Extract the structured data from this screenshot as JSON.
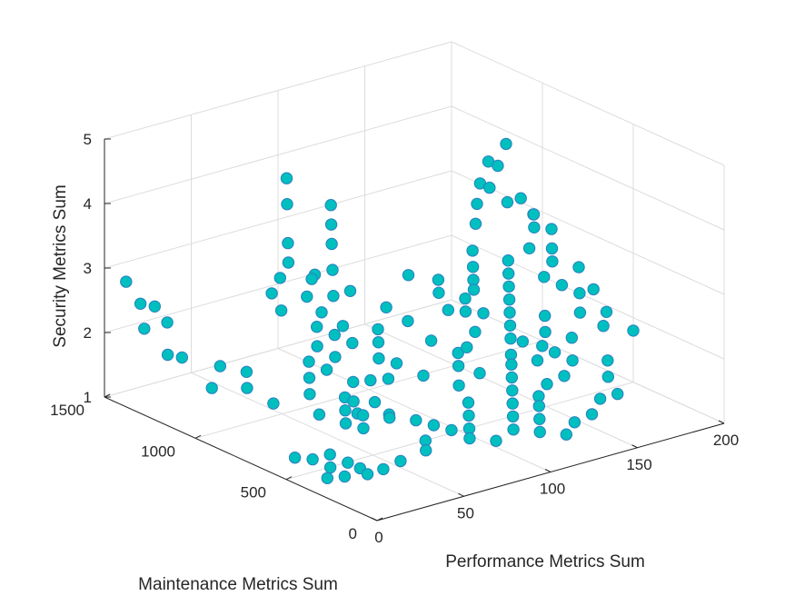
{
  "chart_data": {
    "type": "scatter",
    "title": "",
    "xlabel": "Performance Metrics Sum",
    "ylabel": "Maintenance Metrics Sum",
    "zlabel": "Security Metrics Sum",
    "xlim": [
      0,
      200
    ],
    "ylim": [
      0,
      1500
    ],
    "zlim": [
      1,
      5
    ],
    "x_ticks": [
      "0",
      "50",
      "100",
      "150",
      "200"
    ],
    "y_ticks": [
      "0",
      "500",
      "1000",
      "1500"
    ],
    "z_ticks": [
      "1",
      "2",
      "3",
      "4",
      "5"
    ],
    "grid": true,
    "marker_color": "#00BFBF",
    "marker_edge_color": "#2A7FBF",
    "series": [
      {
        "points": [
          {
            "x": 2,
            "y": 1400,
            "z": 2.9
          },
          {
            "x": 5,
            "y": 1350,
            "z": 2.6
          },
          {
            "x": 8,
            "y": 1300,
            "z": 2.6
          },
          {
            "x": 2,
            "y": 1300,
            "z": 2.3
          },
          {
            "x": 10,
            "y": 1250,
            "z": 2.4
          },
          {
            "x": 5,
            "y": 1200,
            "z": 2.0
          },
          {
            "x": 8,
            "y": 1150,
            "z": 2.0
          },
          {
            "x": 30,
            "y": 1150,
            "z": 1.7
          },
          {
            "x": 20,
            "y": 1100,
            "z": 1.5
          },
          {
            "x": 40,
            "y": 1100,
            "z": 1.6
          },
          {
            "x": 35,
            "y": 1050,
            "z": 1.45
          },
          {
            "x": 45,
            "y": 1000,
            "z": 1.2
          },
          {
            "x": 5,
            "y": 500,
            "z": 1.3
          },
          {
            "x": 10,
            "y": 450,
            "z": 1.3
          },
          {
            "x": 20,
            "y": 450,
            "z": 1.3
          },
          {
            "x": 15,
            "y": 400,
            "z": 1.2
          },
          {
            "x": 25,
            "y": 400,
            "z": 1.2
          },
          {
            "x": 30,
            "y": 380,
            "z": 1.1
          },
          {
            "x": 8,
            "y": 350,
            "z": 1.15
          },
          {
            "x": 18,
            "y": 350,
            "z": 1.1
          },
          {
            "x": 28,
            "y": 320,
            "z": 1.1
          },
          {
            "x": 35,
            "y": 300,
            "z": 1.15
          },
          {
            "x": 45,
            "y": 300,
            "z": 1.2
          },
          {
            "x": 55,
            "y": 700,
            "z": 1.4
          },
          {
            "x": 60,
            "y": 750,
            "z": 1.5
          },
          {
            "x": 62,
            "y": 700,
            "z": 1.3
          },
          {
            "x": 65,
            "y": 750,
            "z": 1.4
          },
          {
            "x": 70,
            "y": 800,
            "z": 1.6
          },
          {
            "x": 72,
            "y": 700,
            "z": 1.4
          },
          {
            "x": 75,
            "y": 650,
            "z": 1.25
          },
          {
            "x": 80,
            "y": 800,
            "z": 1.55
          },
          {
            "x": 85,
            "y": 750,
            "z": 1.6
          },
          {
            "x": 90,
            "y": 850,
            "z": 1.75
          },
          {
            "x": 95,
            "y": 900,
            "z": 1.9
          },
          {
            "x": 100,
            "y": 950,
            "z": 2.0
          },
          {
            "x": 95,
            "y": 800,
            "z": 1.7
          },
          {
            "x": 100,
            "y": 700,
            "z": 1.6
          },
          {
            "x": 80,
            "y": 900,
            "z": 2.0
          },
          {
            "x": 85,
            "y": 1000,
            "z": 2.1
          },
          {
            "x": 90,
            "y": 1100,
            "z": 2.4
          },
          {
            "x": 100,
            "y": 1200,
            "z": 2.6
          },
          {
            "x": 110,
            "y": 1300,
            "z": 2.8
          },
          {
            "x": 115,
            "y": 1350,
            "z": 3.0
          },
          {
            "x": 120,
            "y": 1400,
            "z": 3.2
          },
          {
            "x": 95,
            "y": 1250,
            "z": 2.5
          },
          {
            "x": 105,
            "y": 1150,
            "z": 2.3
          },
          {
            "x": 110,
            "y": 1000,
            "z": 2.2
          },
          {
            "x": 112,
            "y": 900,
            "z": 2.1
          },
          {
            "x": 115,
            "y": 800,
            "z": 1.9
          },
          {
            "x": 120,
            "y": 700,
            "z": 1.8
          },
          {
            "x": 122,
            "y": 600,
            "z": 1.6
          },
          {
            "x": 110,
            "y": 600,
            "z": 1.5
          },
          {
            "x": 105,
            "y": 500,
            "z": 1.4
          },
          {
            "x": 100,
            "y": 450,
            "z": 1.3
          },
          {
            "x": 95,
            "y": 400,
            "z": 1.2
          },
          {
            "x": 90,
            "y": 350,
            "z": 1.15
          },
          {
            "x": 100,
            "y": 300,
            "z": 1.1
          },
          {
            "x": 110,
            "y": 300,
            "z": 1.2
          },
          {
            "x": 115,
            "y": 350,
            "z": 1.3
          },
          {
            "x": 120,
            "y": 400,
            "z": 1.4
          },
          {
            "x": 125,
            "y": 450,
            "z": 1.5
          },
          {
            "x": 130,
            "y": 500,
            "z": 1.6
          },
          {
            "x": 135,
            "y": 550,
            "z": 1.7
          },
          {
            "x": 140,
            "y": 600,
            "z": 1.75
          },
          {
            "x": 145,
            "y": 650,
            "z": 1.9
          },
          {
            "x": 150,
            "y": 700,
            "z": 2.0
          },
          {
            "x": 155,
            "y": 750,
            "z": 2.1
          },
          {
            "x": 160,
            "y": 800,
            "z": 2.2
          },
          {
            "x": 165,
            "y": 850,
            "z": 2.3
          },
          {
            "x": 170,
            "y": 900,
            "z": 2.4
          },
          {
            "x": 175,
            "y": 950,
            "z": 2.5
          },
          {
            "x": 130,
            "y": 850,
            "z": 2.2
          },
          {
            "x": 135,
            "y": 950,
            "z": 2.3
          },
          {
            "x": 140,
            "y": 1000,
            "z": 2.4
          },
          {
            "x": 128,
            "y": 1050,
            "z": 2.5
          },
          {
            "x": 140,
            "y": 250,
            "z": 1.15
          },
          {
            "x": 150,
            "y": 250,
            "z": 1.2
          },
          {
            "x": 160,
            "y": 300,
            "z": 1.3
          },
          {
            "x": 170,
            "y": 300,
            "z": 1.3
          },
          {
            "x": 175,
            "y": 400,
            "z": 1.4
          },
          {
            "x": 180,
            "y": 450,
            "z": 1.55
          },
          {
            "x": 165,
            "y": 500,
            "z": 1.6
          },
          {
            "x": 160,
            "y": 550,
            "z": 1.7
          },
          {
            "x": 175,
            "y": 600,
            "z": 1.75
          },
          {
            "x": 185,
            "y": 650,
            "z": 2.0
          },
          {
            "x": 190,
            "y": 700,
            "z": 2.2
          },
          {
            "x": 185,
            "y": 750,
            "z": 2.3
          },
          {
            "x": 180,
            "y": 800,
            "z": 2.4
          },
          {
            "x": 190,
            "y": 850,
            "z": 2.5
          },
          {
            "x": 195,
            "y": 900,
            "z": 2.6
          },
          {
            "x": 200,
            "y": 950,
            "z": 2.8
          },
          {
            "x": 195,
            "y": 1000,
            "z": 3.0
          },
          {
            "x": 185,
            "y": 1050,
            "z": 3.2
          },
          {
            "x": 180,
            "y": 1100,
            "z": 3.4
          },
          {
            "x": 190,
            "y": 1150,
            "z": 3.6
          },
          {
            "x": 200,
            "y": 1200,
            "z": 3.8
          },
          {
            "x": 195,
            "y": 1250,
            "z": 3.5
          },
          {
            "x": 185,
            "y": 1200,
            "z": 3.3
          },
          {
            "x": 178,
            "y": 1150,
            "z": 3.1
          },
          {
            "x": 172,
            "y": 1100,
            "z": 2.9
          },
          {
            "x": 198,
            "y": 1100,
            "z": 3.1
          },
          {
            "x": 200,
            "y": 1050,
            "z": 2.9
          },
          {
            "x": 200,
            "y": 800,
            "z": 2.4
          },
          {
            "x": 198,
            "y": 700,
            "z": 2.2
          },
          {
            "x": 195,
            "y": 600,
            "z": 2.0
          },
          {
            "x": 188,
            "y": 550,
            "z": 1.9
          },
          {
            "x": 200,
            "y": 500,
            "z": 1.8
          },
          {
            "x": 190,
            "y": 950,
            "z": 2.9
          },
          {
            "x": 182,
            "y": 900,
            "z": 2.7
          },
          {
            "x": 150,
            "y": 900,
            "z": 2.3
          },
          {
            "x": 145,
            "y": 800,
            "z": 2.1
          },
          {
            "x": 150,
            "y": 550,
            "z": 1.65
          },
          {
            "x": 155,
            "y": 450,
            "z": 1.5
          },
          {
            "x": 145,
            "y": 450,
            "z": 1.45
          },
          {
            "x": 135,
            "y": 400,
            "z": 1.4
          },
          {
            "x": 130,
            "y": 350,
            "z": 1.35
          },
          {
            "x": 125,
            "y": 300,
            "z": 1.25
          },
          {
            "x": 120,
            "y": 250,
            "z": 1.15
          },
          {
            "x": 130,
            "y": 200,
            "z": 1.1
          },
          {
            "x": 60,
            "y": 1100,
            "z": 2.4
          },
          {
            "x": 65,
            "y": 1200,
            "z": 2.5
          },
          {
            "x": 75,
            "y": 1250,
            "z": 2.6
          },
          {
            "x": 85,
            "y": 1300,
            "z": 2.7
          },
          {
            "x": 90,
            "y": 1350,
            "z": 2.9
          },
          {
            "x": 100,
            "y": 1450,
            "z": 3.3
          },
          {
            "x": 105,
            "y": 1500,
            "z": 3.6
          },
          {
            "x": 80,
            "y": 1150,
            "z": 2.4
          },
          {
            "x": 70,
            "y": 1000,
            "z": 2.2
          },
          {
            "x": 65,
            "y": 950,
            "z": 2.0
          },
          {
            "x": 55,
            "y": 900,
            "z": 1.9
          },
          {
            "x": 60,
            "y": 850,
            "z": 1.8
          },
          {
            "x": 68,
            "y": 880,
            "z": 1.9
          },
          {
            "x": 75,
            "y": 950,
            "z": 2.1
          },
          {
            "x": 78,
            "y": 1050,
            "z": 2.3
          },
          {
            "x": 88,
            "y": 1200,
            "z": 2.55
          },
          {
            "x": 70,
            "y": 600,
            "z": 1.3
          },
          {
            "x": 80,
            "y": 550,
            "z": 1.25
          },
          {
            "x": 85,
            "y": 500,
            "z": 1.2
          },
          {
            "x": 90,
            "y": 450,
            "z": 1.15
          },
          {
            "x": 75,
            "y": 450,
            "z": 1.1
          },
          {
            "x": 70,
            "y": 400,
            "z": 1.05
          },
          {
            "x": 60,
            "y": 650,
            "z": 1.35
          },
          {
            "x": 50,
            "y": 650,
            "z": 1.3
          },
          {
            "x": 55,
            "y": 600,
            "z": 1.25
          },
          {
            "x": 40,
            "y": 700,
            "z": 1.45
          },
          {
            "x": 45,
            "y": 800,
            "z": 1.6
          },
          {
            "x": 50,
            "y": 850,
            "z": 1.75
          },
          {
            "x": 115,
            "y": 650,
            "z": 1.7
          },
          {
            "x": 125,
            "y": 700,
            "z": 1.85
          },
          {
            "x": 135,
            "y": 750,
            "z": 1.95
          },
          {
            "x": 140,
            "y": 850,
            "z": 2.1
          },
          {
            "x": 145,
            "y": 900,
            "z": 2.2
          },
          {
            "x": 155,
            "y": 950,
            "z": 2.35
          },
          {
            "x": 160,
            "y": 1000,
            "z": 2.45
          },
          {
            "x": 165,
            "y": 1050,
            "z": 2.6
          },
          {
            "x": 170,
            "y": 700,
            "z": 2.0
          },
          {
            "x": 165,
            "y": 650,
            "z": 1.85
          },
          {
            "x": 158,
            "y": 600,
            "z": 1.75
          },
          {
            "x": 152,
            "y": 650,
            "z": 1.8
          }
        ]
      }
    ]
  }
}
